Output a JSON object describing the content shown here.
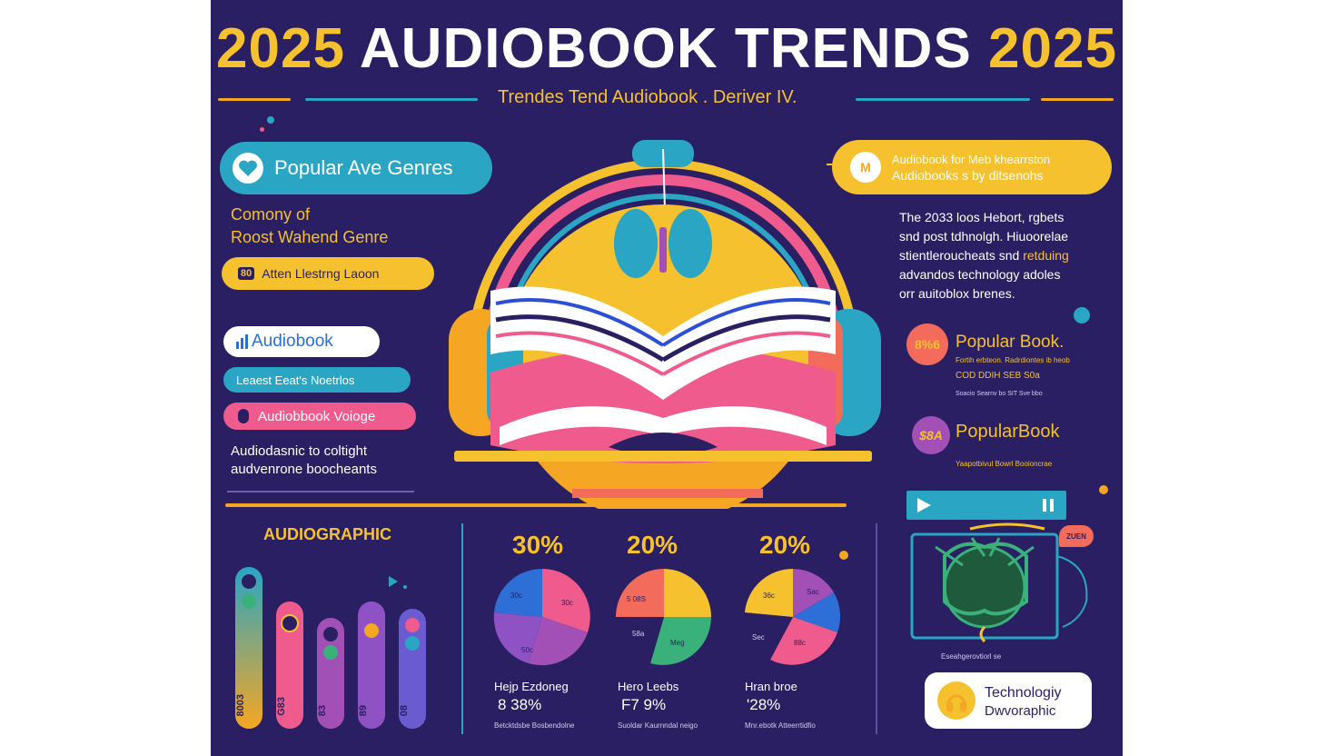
{
  "header": {
    "year_left": "2025",
    "title": "AUDIOBOOK TRENDS",
    "year_right": "2025",
    "subtitle": "Trendes Tend Audiobook . Deriver IV."
  },
  "left_panel": {
    "genres_pill": "Popular Ave Genres",
    "genre_caption_1": "Comony of",
    "genre_caption_2": "Roost Wahend Genre",
    "listening_pill_icon": "80",
    "listening_pill": "Atten Llestrng Laoon",
    "audiobook_pill": "Audiobook",
    "latest_pill": "Leaest Eeat's Noetrlos",
    "voice_pill": "Audiobbook Voioge",
    "desc_1": "Audiodasnic to coltight",
    "desc_2": "audvenrone boocheants"
  },
  "right_panel": {
    "callout_1": "Audiobook for Meb khearrston",
    "callout_2": "Audiobooks s by ditsenohs",
    "para": [
      "The 2033 loos Hebort, rgbets",
      "snd post tdhnolgh. Hiuoorelae",
      "stientleroucheats snd ",
      "advandos technology adoles",
      "orr auitoblox brenes."
    ],
    "para_highlight": "retduing",
    "pop1_badge": "8%6",
    "pop1_title": "Popular Book.",
    "pop1_sub1": "Fortih erbteon. Radrdiontes ib heob",
    "pop1_sub2": "COD DDIH SEB S0a",
    "pop1_sub3": "Soacio Searnv bo SIT Sve bbo",
    "pop2_badge": "$8A",
    "pop2_title": "PopularBook",
    "pop2_sub": "Yaapotbivul Bowrl Booioncrae",
    "monitor_caption": "Eseahgerovtiorl se",
    "chat_bubble": "ZUEN",
    "tech_title_1": "Technologiy",
    "tech_title_2": "Dwvoraphic"
  },
  "bottom": {
    "audiographic_label": "AUDIOGRAPHIC",
    "bars": [
      {
        "label": "8003",
        "color": "#f5a623"
      },
      {
        "label": "G83",
        "color": "#ef5b8c"
      },
      {
        "label": "83",
        "color": "#a24fb6"
      },
      {
        "label": "89",
        "color": "#8e52c4"
      },
      {
        "label": "08",
        "color": "#6a5bd1"
      }
    ],
    "pies": [
      {
        "pct": "30%",
        "caption": "Hejp Ezdoneg",
        "value": "8 38%",
        "footer": "Betcktdsbe Bosbendolne",
        "slice_labels": [
          "30c",
          "30c",
          "50c"
        ]
      },
      {
        "pct": "20%",
        "caption": "Hero Leebs",
        "value": "F7 9%",
        "footer": "Suoldar Kaurnndal neigo",
        "slice_labels": [
          "5 08S",
          "58a",
          "Meg"
        ]
      },
      {
        "pct": "20%",
        "caption": "Hran broe",
        "value": "'28%",
        "footer": "Mnr.ebotk Atteerrtidfio",
        "slice_labels": [
          "36c",
          "Sac",
          "Sec",
          "88c"
        ]
      }
    ]
  },
  "colors": {
    "background": "#2a1f62",
    "yellow": "#f5c12e",
    "teal": "#2aa6c4",
    "pink": "#ef5b8c",
    "coral": "#f26b5b",
    "purple": "#a24fb6",
    "blue": "#2d8fd6",
    "green": "#3ab07a"
  }
}
